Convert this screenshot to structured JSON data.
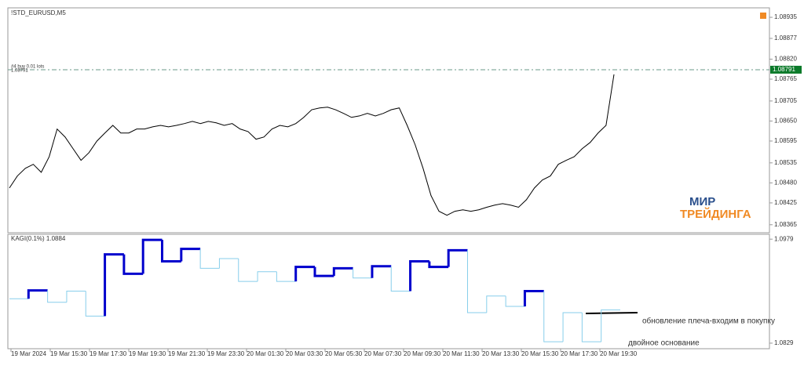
{
  "chart_data": [
    {
      "type": "line",
      "title": "!STD_EURUSD,M5",
      "color": "#000000",
      "values": [
        1.08466,
        1.08499,
        1.0852,
        1.08531,
        1.08509,
        1.08552,
        1.08628,
        1.08606,
        1.08574,
        1.08542,
        1.08563,
        1.08595,
        1.08617,
        1.08638,
        1.08617,
        1.08617,
        1.08628,
        1.08628,
        1.08634,
        1.08638,
        1.08634,
        1.08638,
        1.08643,
        1.08649,
        1.08643,
        1.08649,
        1.08645,
        1.08638,
        1.08643,
        1.08628,
        1.08621,
        1.086,
        1.08606,
        1.08628,
        1.08638,
        1.08634,
        1.08643,
        1.0866,
        1.08681,
        1.08686,
        1.08688,
        1.08681,
        1.08671,
        1.0866,
        1.08664,
        1.08671,
        1.08664,
        1.08671,
        1.08681,
        1.08686,
        1.08638,
        1.08585,
        1.0852,
        1.08445,
        1.08402,
        1.08391,
        1.08402,
        1.08406,
        1.08402,
        1.08406,
        1.08413,
        1.08419,
        1.08423,
        1.08419,
        1.08413,
        1.08434,
        1.08466,
        1.08488,
        1.08499,
        1.08531,
        1.08542,
        1.08552,
        1.08574,
        1.08591,
        1.08617,
        1.08638,
        1.08778
      ],
      "ylim": [
        1.08343,
        1.08961
      ],
      "yticks": [
        1.08935,
        1.08877,
        {
          "value": 1.0882,
          "label": "1.08820"
        },
        1.08765,
        1.08705,
        {
          "value": 1.0865,
          "label": "1.08650"
        },
        1.08595,
        1.08535,
        {
          "value": 1.0848,
          "label": "1.08480"
        },
        1.08425,
        1.08365
      ],
      "price_line": {
        "value": 1.08791,
        "label": "#4 buy 0.01 lots",
        "color": "#6a9a8a"
      },
      "watermark": [
        "МИР",
        "ТРЕЙДИНГА"
      ],
      "x_labels": [
        "19 Mar 2024",
        "19 Mar 15:30",
        "19 Mar 17:30",
        "19 Mar 19:30",
        "19 Mar 21:30",
        "19 Mar 23:30",
        "20 Mar 01:30",
        "20 Mar 03:30",
        "20 Mar 05:30",
        "20 Mar 07:30",
        "20 Mar 09:30",
        "20 Mar 11:30",
        "20 Mar 13:30",
        "20 Mar 15:30",
        "20 Mar 17:30",
        "20 Mar 19:30"
      ]
    },
    {
      "type": "kagi",
      "title": "KAGI(0.1%) 1.0884",
      "values": [
        1.0893,
        1.0905,
        1.0888,
        1.0904,
        1.0868,
        1.0957,
        1.0929,
        1.0978,
        1.0947,
        1.0965,
        1.0937,
        1.0951,
        1.0918,
        1.0932,
        1.0918,
        1.0939,
        1.0926,
        1.0937,
        1.0923,
        1.094,
        1.0904,
        1.0947,
        1.0939,
        1.0963,
        1.0873,
        1.0897,
        1.0882,
        1.0904,
        1.0831,
        1.0873,
        1.0831,
        1.0877
      ],
      "colors": [
        "#87ceeb",
        "#0000cd",
        "#87ceeb",
        "#87ceeb",
        "#87ceeb",
        "#0000cd",
        "#0000cd",
        "#0000cd",
        "#0000cd",
        "#0000cd",
        "#87ceeb",
        "#87ceeb",
        "#87ceeb",
        "#87ceeb",
        "#87ceeb",
        "#0000cd",
        "#0000cd",
        "#0000cd",
        "#87ceeb",
        "#0000cd",
        "#87ceeb",
        "#0000cd",
        "#0000cd",
        "#0000cd",
        "#87ceeb",
        "#87ceeb",
        "#87ceeb",
        "#0000cd",
        "#87ceeb",
        "#87ceeb",
        "#87ceeb",
        "#87ceeb"
      ],
      "ylim": [
        1.0821,
        1.0986
      ],
      "yticks": [
        1.0979,
        1.0829
      ],
      "annotations": [
        "обновление плеча-входим в покупку",
        "двойное основание"
      ]
    }
  ]
}
